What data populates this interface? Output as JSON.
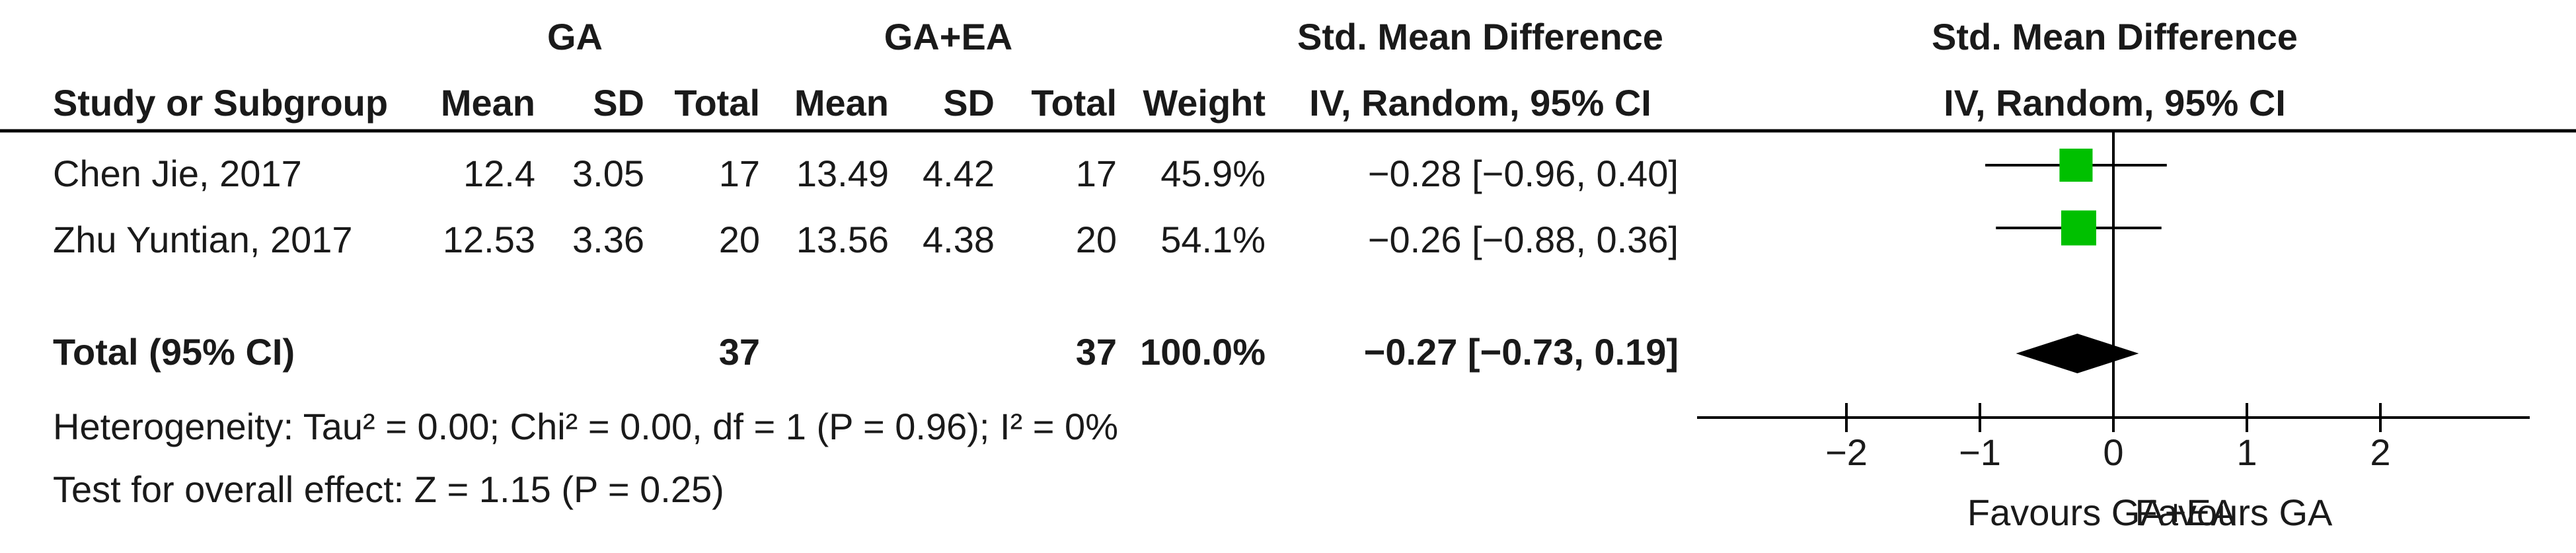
{
  "header": {
    "group1": "GA",
    "group2": "GA+EA",
    "effect_title": "Std. Mean Difference",
    "plot_title": "Std. Mean Difference",
    "col_study": "Study or Subgroup",
    "col_mean": "Mean",
    "col_sd": "SD",
    "col_total": "Total",
    "col_weight": "Weight",
    "effect_method": "IV, Random, 95% CI",
    "plot_method": "IV, Random, 95% CI"
  },
  "studies": [
    {
      "name": "Chen Jie, 2017",
      "mean1": "12.4",
      "sd1": "3.05",
      "total1": "17",
      "mean2": "13.49",
      "sd2": "4.42",
      "total2": "17",
      "weight": "45.9%",
      "ci_text": "−0.28 [−0.96, 0.40]"
    },
    {
      "name": "Zhu Yuntian, 2017",
      "mean1": "12.53",
      "sd1": "3.36",
      "total1": "20",
      "mean2": "13.56",
      "sd2": "4.38",
      "total2": "20",
      "weight": "54.1%",
      "ci_text": "−0.26 [−0.88, 0.36]"
    }
  ],
  "total": {
    "label": "Total (95% CI)",
    "total1": "37",
    "total2": "37",
    "weight": "100.0%",
    "ci_text": "−0.27 [−0.73, 0.19]"
  },
  "heterogeneity": "Heterogeneity: Tau² = 0.00; Chi² = 0.00, df = 1 (P = 0.96); I² = 0%",
  "overall_effect": "Test for overall effect: Z = 1.15 (P = 0.25)",
  "axis": {
    "ticks": [
      "−2",
      "−1",
      "0",
      "1",
      "2"
    ],
    "favours_left": "Favours GA+EA",
    "favours_right": "Favours GA"
  },
  "colors": {
    "square": "#00c000",
    "diamond": "#000000",
    "line": "#000000"
  },
  "chart_data": {
    "type": "forest",
    "xlim": [
      -2,
      2
    ],
    "x_ticks": [
      -2,
      -1,
      0,
      1,
      2
    ],
    "studies": [
      {
        "name": "Chen Jie, 2017",
        "estimate": -0.28,
        "lower": -0.96,
        "upper": 0.4,
        "weight": 45.9
      },
      {
        "name": "Zhu Yuntian, 2017",
        "estimate": -0.26,
        "lower": -0.88,
        "upper": 0.36,
        "weight": 54.1
      }
    ],
    "pooled": {
      "estimate": -0.27,
      "lower": -0.73,
      "upper": 0.19
    }
  }
}
